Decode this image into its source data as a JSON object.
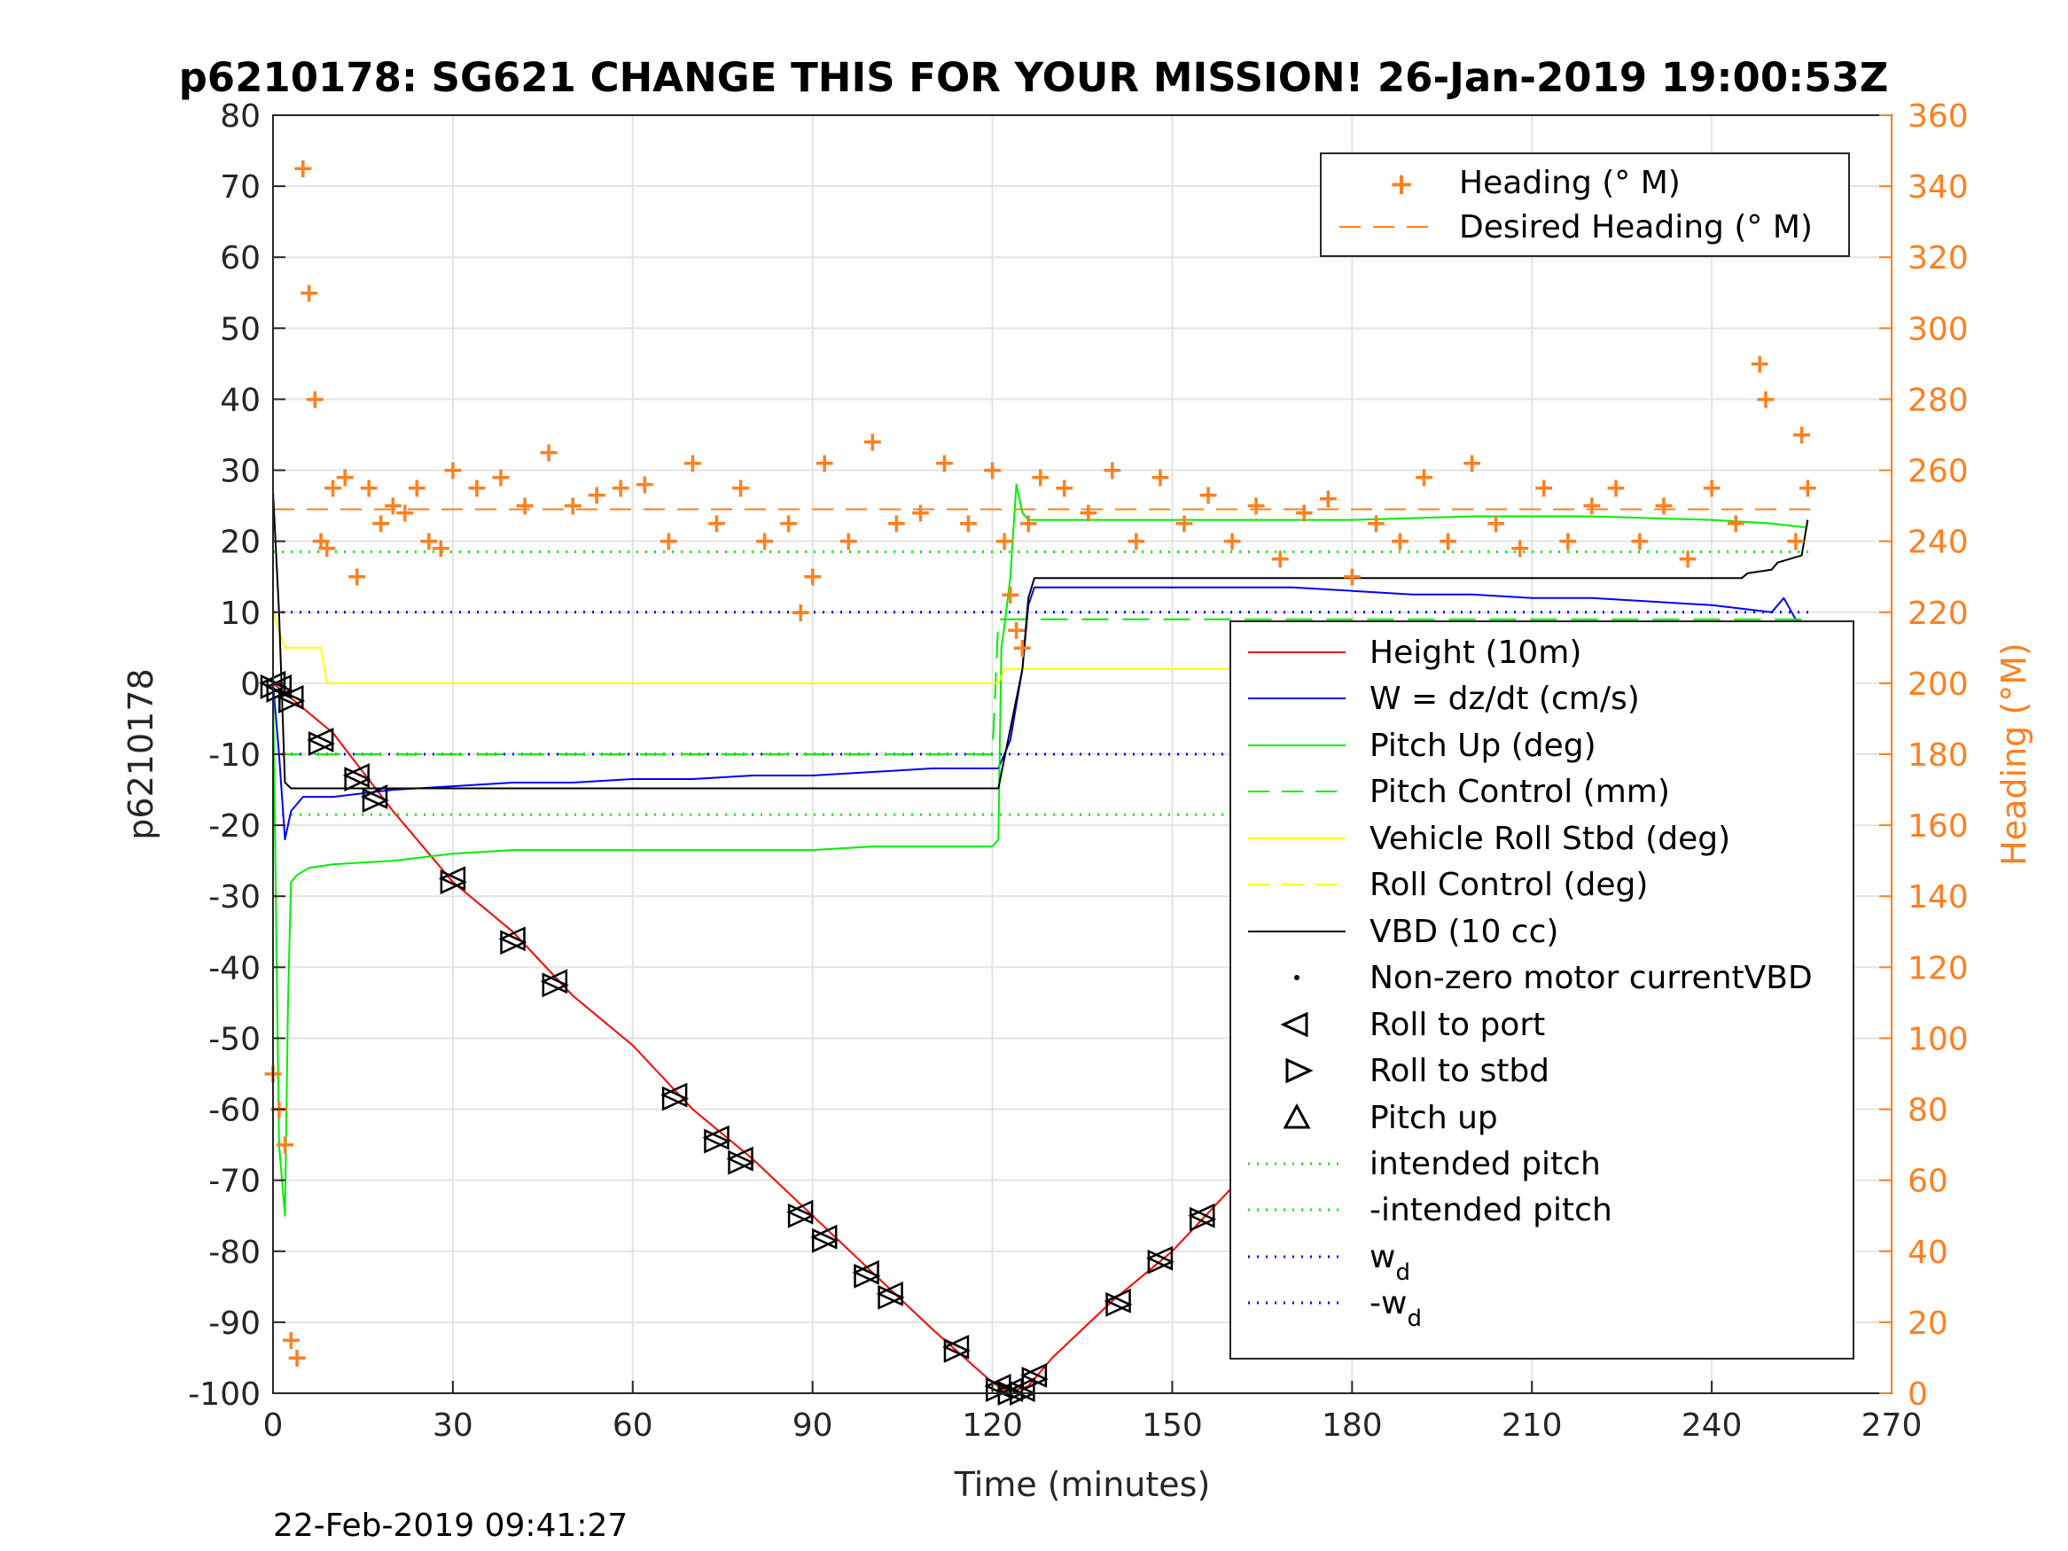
{
  "chart_data": {
    "type": "line",
    "title": "p6210178: SG621 CHANGE THIS FOR YOUR MISSION! 26-Jan-2019 19:00:53Z",
    "footer": "22-Feb-2019 09:41:27",
    "xlabel": "Time (minutes)",
    "ylabel": "p6210178",
    "y2label": "Heading (°M)",
    "xlim": [
      0,
      270
    ],
    "ylim": [
      -100,
      80
    ],
    "y2lim": [
      0,
      360
    ],
    "xticks": [
      "0",
      "30",
      "60",
      "90",
      "120",
      "150",
      "180",
      "210",
      "240",
      "270"
    ],
    "yticks": [
      "80",
      "70",
      "60",
      "50",
      "40",
      "30",
      "20",
      "10",
      "0",
      "-10",
      "-20",
      "-30",
      "-40",
      "-50",
      "-60",
      "-70",
      "-80",
      "-90",
      "-100"
    ],
    "y2ticks": [
      "360",
      "340",
      "320",
      "300",
      "280",
      "260",
      "240",
      "220",
      "200",
      "180",
      "160",
      "140",
      "120",
      "100",
      "80",
      "60",
      "40",
      "20",
      "0"
    ],
    "grid": true,
    "colors": {
      "height": "#ff0000",
      "w": "#0000ff",
      "pitch": "#00ee00",
      "roll": "#ffff00",
      "vbd": "#000000",
      "heading": "#ff7f1f",
      "axis_right": "#ff7f1f"
    },
    "legend_right": {
      "placement": "top-right",
      "entries": [
        "Heading (° M)",
        "Desired Heading (° M)"
      ]
    },
    "legend_left": {
      "placement": "right",
      "entries": [
        "Height (10m)",
        "W = dz/dt (cm/s)",
        "Pitch Up (deg)",
        "Pitch Control (mm)",
        "Vehicle Roll Stbd (deg)",
        "Roll Control (deg)",
        "VBD (10 cc)",
        "Non-zero motor currentVBD",
        "Roll to port",
        "Roll to stbd",
        "Pitch up",
        "intended pitch",
        "-intended pitch",
        "w",
        "-w"
      ],
      "subscript": "d"
    },
    "series": [
      {
        "name": "Height (10m)",
        "axis": "left",
        "x": [
          0,
          10,
          20,
          30,
          40,
          50,
          60,
          70,
          80,
          90,
          100,
          110,
          120,
          122,
          124,
          126,
          130,
          140,
          150,
          160,
          170,
          180,
          190,
          200,
          210,
          220,
          230,
          240,
          250,
          256
        ],
        "y": [
          0,
          -7,
          -18,
          -28,
          -35,
          -44,
          -51,
          -60,
          -67,
          -75,
          -83,
          -91,
          -98.5,
          -99.5,
          -99.5,
          -99,
          -95,
          -87,
          -80,
          -71,
          -63,
          -55,
          -47,
          -40,
          -32,
          -24,
          -16,
          -9,
          -4,
          -1
        ]
      },
      {
        "name": "W = dz/dt (cm/s)",
        "axis": "left",
        "x": [
          0,
          1,
          2,
          3,
          5,
          10,
          20,
          30,
          40,
          50,
          60,
          70,
          80,
          90,
          100,
          110,
          115,
          120,
          121,
          123,
          125,
          126,
          127,
          130,
          140,
          150,
          160,
          170,
          180,
          190,
          200,
          210,
          220,
          230,
          240,
          245,
          250,
          252,
          254,
          256
        ],
        "y": [
          0,
          -10,
          -22,
          -18,
          -16,
          -16,
          -15,
          -14.5,
          -14,
          -14,
          -13.5,
          -13.5,
          -13,
          -13,
          -12.5,
          -12,
          -12,
          -12,
          -12,
          -8,
          2,
          11,
          13.5,
          13.5,
          13.5,
          13.5,
          13.5,
          13.5,
          13,
          12.5,
          12.5,
          12,
          12,
          11.5,
          11,
          10.5,
          10,
          12,
          9,
          8
        ]
      },
      {
        "name": "Pitch Up (deg)",
        "axis": "left",
        "x": [
          0,
          1,
          2,
          2.5,
          3,
          4,
          6,
          10,
          20,
          30,
          40,
          60,
          80,
          90,
          100,
          110,
          120,
          121,
          121.5,
          122,
          123,
          124,
          125,
          126,
          130,
          140,
          160,
          180,
          200,
          220,
          240,
          250,
          255,
          256
        ],
        "y": [
          0,
          -65,
          -75,
          -45,
          -28,
          -27,
          -26,
          -25.5,
          -25,
          -24,
          -23.5,
          -23.5,
          -23.5,
          -23.5,
          -23,
          -23,
          -23,
          -22,
          5,
          8,
          15,
          28,
          24,
          23,
          23,
          23,
          23,
          23,
          23.5,
          23.5,
          23,
          22.5,
          22,
          22
        ]
      },
      {
        "name": "Pitch Control (mm)",
        "axis": "left",
        "x": [
          0,
          120,
          121,
          256
        ],
        "y": [
          -10,
          -10,
          9,
          9
        ]
      },
      {
        "name": "Vehicle Roll Stbd (deg)",
        "axis": "left",
        "x": [
          0,
          2,
          4,
          8,
          9,
          10,
          20,
          30,
          40,
          60,
          80,
          90,
          100,
          110,
          120,
          121,
          122,
          124,
          126,
          130,
          140,
          160,
          180,
          200,
          220,
          240,
          250,
          254,
          256
        ],
        "y": [
          10,
          5,
          5,
          5,
          0,
          0,
          0,
          0,
          0,
          0,
          0,
          0,
          0,
          0,
          0,
          0,
          2,
          2,
          2,
          2,
          2,
          2,
          2,
          2,
          2,
          2,
          2,
          0,
          -4
        ]
      },
      {
        "name": "VBD (10 cc)",
        "axis": "left",
        "x": [
          0,
          1,
          2,
          3,
          120,
          121,
          125,
          126,
          127,
          230,
          245,
          246,
          250,
          251,
          255,
          256
        ],
        "y": [
          27,
          10,
          -14,
          -14.8,
          -14.8,
          -14.8,
          2,
          12,
          14.8,
          14.8,
          14.8,
          15.5,
          16,
          17,
          18,
          23
        ]
      },
      {
        "name": "Heading (° M)",
        "axis": "right",
        "x": [
          0,
          1,
          2,
          3,
          4,
          5,
          6,
          7,
          8,
          9,
          10,
          12,
          14,
          16,
          18,
          20,
          22,
          24,
          26,
          28,
          30,
          34,
          38,
          42,
          46,
          50,
          54,
          58,
          62,
          66,
          70,
          74,
          78,
          82,
          86,
          88,
          90,
          92,
          96,
          100,
          104,
          108,
          112,
          116,
          120,
          122,
          123,
          124,
          125,
          126,
          128,
          132,
          136,
          140,
          144,
          148,
          152,
          156,
          160,
          164,
          168,
          172,
          176,
          180,
          184,
          188,
          192,
          196,
          200,
          204,
          208,
          212,
          216,
          220,
          224,
          228,
          232,
          236,
          240,
          244,
          248,
          249,
          250,
          251,
          252,
          253,
          254,
          255,
          256
        ],
        "y": [
          90,
          80,
          70,
          15,
          10,
          345,
          310,
          280,
          240,
          238,
          255,
          258,
          230,
          255,
          245,
          250,
          248,
          255,
          240,
          238,
          260,
          255,
          258,
          250,
          265,
          250,
          253,
          255,
          256,
          240,
          262,
          245,
          255,
          240,
          245,
          220,
          230,
          262,
          240,
          268,
          245,
          248,
          262,
          245,
          260,
          240,
          225,
          215,
          210,
          245,
          258,
          255,
          248,
          260,
          240,
          258,
          245,
          253,
          240,
          250,
          235,
          248,
          252,
          230,
          245,
          240,
          258,
          240,
          262,
          245,
          238,
          255,
          240,
          250,
          255,
          240,
          250,
          235,
          255,
          245,
          290,
          280,
          210,
          175,
          165,
          200,
          240,
          270,
          255
        ]
      }
    ],
    "reference_lines": [
      {
        "name": "Desired Heading (° M)",
        "axis": "right",
        "value": 249
      },
      {
        "name": "intended pitch",
        "axis": "left",
        "value": 18.5
      },
      {
        "name": "-intended pitch",
        "axis": "left",
        "value": -18.5
      },
      {
        "name": "w_d",
        "axis": "left",
        "value": 10
      },
      {
        "name": "-w_d",
        "axis": "left",
        "value": -10
      }
    ],
    "markers": {
      "roll_to_port": {
        "x": [
          0,
          1,
          3,
          8,
          14,
          17,
          30,
          40,
          47,
          67,
          74,
          78,
          88,
          92,
          99,
          103,
          114,
          121,
          123,
          125,
          127,
          141,
          148,
          155,
          165,
          172,
          182,
          190,
          194,
          200,
          204,
          218,
          224,
          231,
          241,
          244,
          249,
          251,
          256
        ],
        "y": [
          0,
          -0.5,
          -2,
          -8,
          -13,
          -16,
          -27.5,
          -36,
          -42,
          -58,
          -64,
          -67,
          -74.5,
          -78,
          -83,
          -86,
          -93.5,
          -99,
          -99.5,
          -99.5,
          -97.5,
          -87,
          -81,
          -75,
          -67,
          -61.5,
          -53.5,
          -47.5,
          -44,
          -39,
          -36.5,
          -26,
          -21,
          -17,
          -10,
          -8.5,
          -5,
          -4,
          -1
        ]
      }
    }
  }
}
